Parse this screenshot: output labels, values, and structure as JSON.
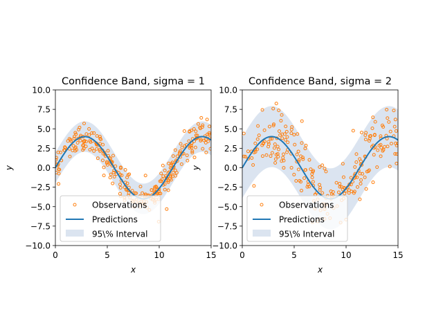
{
  "chart_data": [
    {
      "type": "line",
      "title": "Confidence Band, sigma = 1",
      "xlabel": "x",
      "ylabel": "y",
      "xlim": [
        0,
        15
      ],
      "ylim": [
        -10,
        10
      ],
      "xticks": [
        "0",
        "5",
        "10",
        "15"
      ],
      "yticks": [
        "−10.0",
        "−7.5",
        "−5.0",
        "−2.5",
        "0.0",
        "2.5",
        "5.0",
        "7.5",
        "10.0"
      ],
      "grid": false,
      "legend_position": "lower-left",
      "sigma": 1,
      "series": [
        {
          "name": "Observations",
          "kind": "scatter",
          "color": "#ff7f0e",
          "note": "noisy samples around 4·sin(x/1.8), approx. 300 points, x from 0 to 15"
        },
        {
          "name": "Predictions",
          "kind": "line",
          "color": "#1f77b4",
          "x": [
            0,
            0.75,
            1.5,
            2.25,
            3,
            3.75,
            4.5,
            5.25,
            6,
            6.75,
            7.5,
            8.25,
            9,
            9.75,
            10.5,
            11.25,
            12,
            12.75,
            13.5,
            14.25,
            15
          ],
          "y": [
            0,
            1.63,
            2.96,
            3.77,
            3.98,
            3.56,
            2.59,
            1.2,
            -0.38,
            -1.93,
            -3.17,
            -3.88,
            -3.95,
            -3.37,
            -2.26,
            -0.78,
            0.81,
            2.29,
            3.4,
            3.95,
            3.87
          ]
        },
        {
          "name": "95\\% Interval",
          "kind": "band",
          "color": "#b0c4de",
          "half_width": 1.96
        }
      ]
    },
    {
      "type": "line",
      "title": "Confidence Band, sigma = 2",
      "xlabel": "x",
      "ylabel": "y",
      "xlim": [
        0,
        15
      ],
      "ylim": [
        -10,
        10
      ],
      "xticks": [
        "0",
        "5",
        "10",
        "15"
      ],
      "yticks": [
        "−10.0",
        "−7.5",
        "−5.0",
        "−2.5",
        "0.0",
        "2.5",
        "5.0",
        "7.5",
        "10.0"
      ],
      "grid": false,
      "legend_position": "lower-left",
      "sigma": 2,
      "series": [
        {
          "name": "Observations",
          "kind": "scatter",
          "color": "#ff7f0e",
          "note": "noisy samples around 4·sin(x/1.8), approx. 250 points, x from 0 to 15"
        },
        {
          "name": "Predictions",
          "kind": "line",
          "color": "#1f77b4",
          "x": [
            0,
            0.75,
            1.5,
            2.25,
            3,
            3.75,
            4.5,
            5.25,
            6,
            6.75,
            7.5,
            8.25,
            9,
            9.75,
            10.5,
            11.25,
            12,
            12.75,
            13.5,
            14.25,
            15
          ],
          "y": [
            0,
            1.63,
            2.96,
            3.77,
            3.98,
            3.56,
            2.59,
            1.2,
            -0.38,
            -1.93,
            -3.17,
            -3.88,
            -3.95,
            -3.37,
            -2.26,
            -0.78,
            0.81,
            2.29,
            3.4,
            3.95,
            3.87
          ]
        },
        {
          "name": "95\\% Interval",
          "kind": "band",
          "color": "#b0c4de",
          "half_width": 3.92
        }
      ]
    }
  ]
}
